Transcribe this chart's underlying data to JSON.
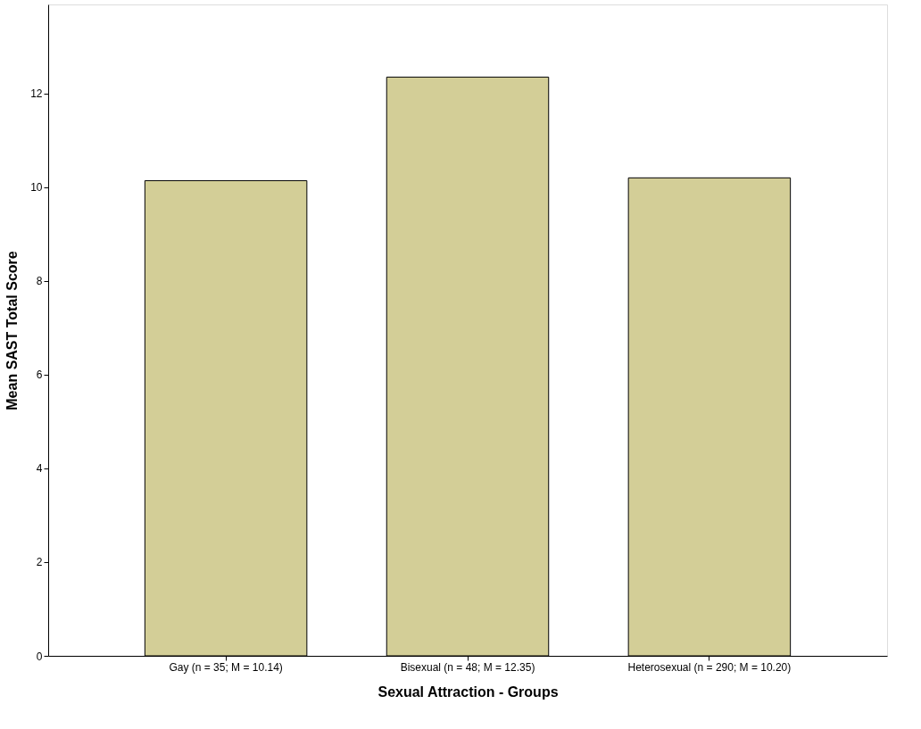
{
  "chart_data": {
    "type": "bar",
    "xlabel": "Sexual Attraction - Groups",
    "ylabel": "Mean SAST Total Score",
    "categories": [
      "Gay (n = 35; M = 10.14)",
      "Bisexual (n = 48; M = 12.35)",
      "Heterosexual (n = 290; M = 10.20)"
    ],
    "values": [
      10.14,
      12.35,
      10.2
    ],
    "color": "#d3ce97",
    "ylim": [
      0,
      13.9
    ],
    "yticks": [
      0,
      2,
      4,
      6,
      8,
      10,
      12
    ],
    "grid": false,
    "legend": false
  }
}
